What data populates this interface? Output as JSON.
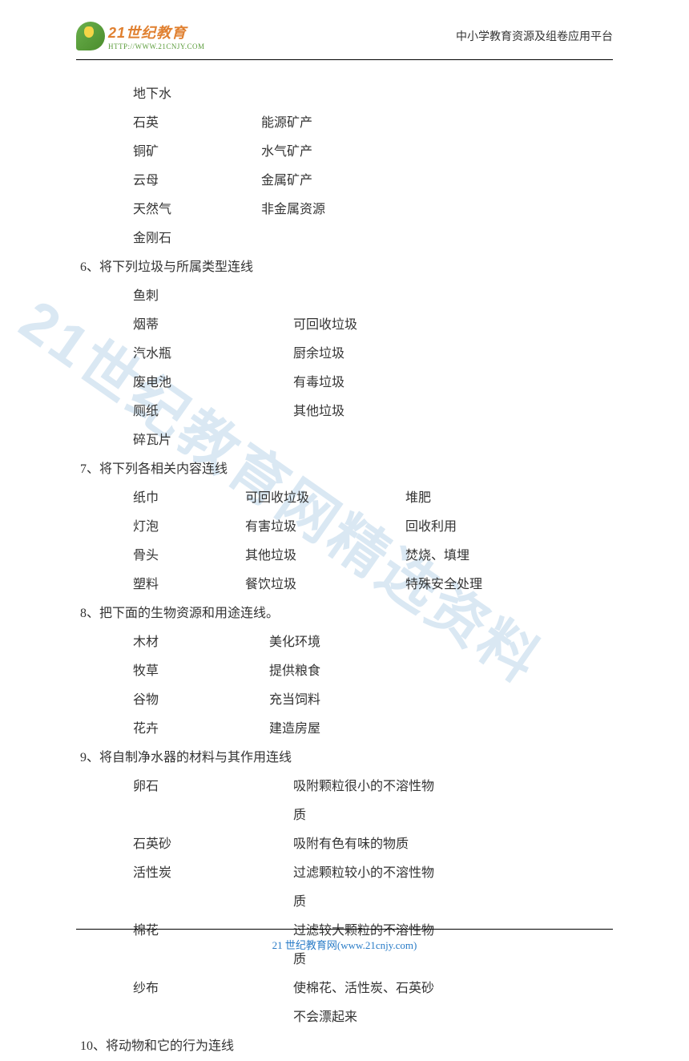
{
  "header": {
    "logo_main": "21世纪教育",
    "logo_sub": "HTTP://WWW.21CNJY.COM",
    "right_text": "中小学教育资源及组卷应用平台"
  },
  "watermark": "21世纪教育网精选资料",
  "q5_continued": {
    "rows": [
      {
        "left": "地下水",
        "right": ""
      },
      {
        "left": "石英",
        "right": "能源矿产"
      },
      {
        "left": "铜矿",
        "right": "水气矿产"
      },
      {
        "left": "云母",
        "right": "金属矿产"
      },
      {
        "left": "天然气",
        "right": "非金属资源"
      },
      {
        "left": "金刚石",
        "right": ""
      }
    ]
  },
  "q6": {
    "title": "6、将下列垃圾与所属类型连线",
    "rows": [
      {
        "left": "鱼刺",
        "right": ""
      },
      {
        "left": "烟蒂",
        "right": "可回收垃圾"
      },
      {
        "left": "汽水瓶",
        "right": "厨余垃圾"
      },
      {
        "left": "废电池",
        "right": "有毒垃圾"
      },
      {
        "left": "厕纸",
        "right": "其他垃圾"
      },
      {
        "left": "碎瓦片",
        "right": ""
      }
    ]
  },
  "q7": {
    "title": "7、将下列各相关内容连线",
    "rows": [
      {
        "c1": "纸巾",
        "c2": "可回收垃圾",
        "c3": "堆肥"
      },
      {
        "c1": "灯泡",
        "c2": "有害垃圾",
        "c3": "回收利用"
      },
      {
        "c1": "骨头",
        "c2": "其他垃圾",
        "c3": "焚烧、填埋"
      },
      {
        "c1": "塑料",
        "c2": "餐饮垃圾",
        "c3": "特殊安全处理"
      }
    ]
  },
  "q8": {
    "title": "8、把下面的生物资源和用途连线。",
    "rows": [
      {
        "left": "木材",
        "right": "美化环境"
      },
      {
        "left": "牧草",
        "right": "提供粮食"
      },
      {
        "left": "谷物",
        "right": "充当饲料"
      },
      {
        "left": "花卉",
        "right": "建造房屋"
      }
    ]
  },
  "q9": {
    "title": "9、将自制净水器的材料与其作用连线",
    "rows": [
      {
        "left": "卵石",
        "right": "吸附颗粒很小的不溶性物质"
      },
      {
        "left": "石英砂",
        "right": "吸附有色有味的物质"
      },
      {
        "left": "活性炭",
        "right": "过滤颗粒较小的不溶性物质"
      },
      {
        "left": "棉花",
        "right": "过滤较大颗粒的不溶性物质"
      },
      {
        "left": "纱布",
        "right": "使棉花、活性炭、石英砂不会漂起来"
      }
    ]
  },
  "q10": {
    "title": "10、将动物和它的行为连线"
  },
  "footer": {
    "brand": "21 世纪教育网",
    "url": "(www.21cnjy.com)"
  }
}
